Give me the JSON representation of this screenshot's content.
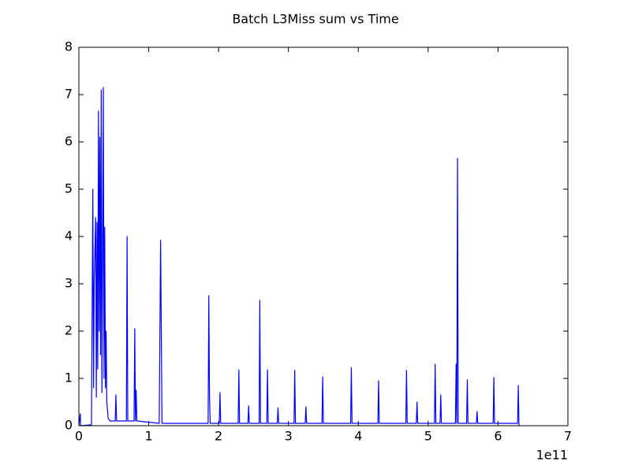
{
  "chart_data": {
    "type": "line",
    "title": "Batch L3Miss sum vs Time",
    "x_offset_label": "1e11",
    "xlim": [
      0,
      7
    ],
    "xticks": [
      0,
      1,
      2,
      3,
      4,
      5,
      6,
      7
    ],
    "ylim": [
      0,
      8
    ],
    "yticks": [
      0,
      1,
      2,
      3,
      4,
      5,
      6,
      7,
      8
    ],
    "grid": false,
    "series": [
      {
        "color": "#0000ff",
        "x": [
          0,
          0.02,
          0.025,
          0.18,
          0.2,
          0.21,
          0.22,
          0.24,
          0.25,
          0.26,
          0.27,
          0.28,
          0.29,
          0.3,
          0.31,
          0.32,
          0.33,
          0.34,
          0.35,
          0.36,
          0.37,
          0.38,
          0.39,
          0.4,
          0.42,
          0.45,
          0.52,
          0.53,
          0.54,
          0.68,
          0.69,
          0.7,
          0.79,
          0.8,
          0.81,
          0.82,
          0.83,
          1.15,
          1.17,
          1.18,
          1.19,
          1.5,
          1.85,
          1.86,
          1.87,
          1.88,
          2.01,
          2.02,
          2.03,
          2.28,
          2.29,
          2.3,
          2.42,
          2.43,
          2.44,
          2.58,
          2.59,
          2.6,
          2.69,
          2.7,
          2.71,
          2.84,
          2.85,
          2.86,
          3.08,
          3.09,
          3.1,
          3.24,
          3.25,
          3.26,
          3.48,
          3.49,
          3.5,
          3.89,
          3.9,
          3.91,
          4.28,
          4.29,
          4.3,
          4.68,
          4.69,
          4.7,
          4.83,
          4.84,
          4.85,
          5.09,
          5.1,
          5.11,
          5.17,
          5.18,
          5.19,
          5.39,
          5.4,
          5.41,
          5.42,
          5.43,
          5.55,
          5.56,
          5.57,
          5.69,
          5.7,
          5.71,
          5.93,
          5.94,
          5.95,
          6.28,
          6.29,
          6.3
        ],
        "values": [
          0,
          0.25,
          0,
          0.02,
          5.0,
          0.8,
          3.1,
          4.4,
          0.6,
          4.3,
          1.2,
          6.65,
          2.0,
          6.1,
          1.5,
          7.1,
          0.7,
          3.5,
          7.15,
          1.0,
          4.2,
          0.8,
          2.0,
          0.5,
          0.15,
          0.1,
          0.1,
          0.65,
          0.1,
          0.1,
          4.0,
          0.1,
          0.1,
          2.05,
          0.1,
          0.75,
          0.1,
          0.05,
          3.92,
          2.0,
          0.05,
          0.05,
          0.05,
          2.75,
          0.6,
          0.05,
          0.05,
          0.7,
          0.05,
          0.05,
          1.18,
          0.05,
          0.05,
          0.42,
          0.05,
          0.05,
          2.65,
          0.05,
          0.05,
          1.18,
          0.05,
          0.05,
          0.38,
          0.05,
          0.05,
          1.17,
          0.05,
          0.05,
          0.4,
          0.05,
          0.05,
          1.03,
          0.05,
          0.05,
          1.23,
          0.05,
          0.05,
          0.95,
          0.05,
          0.05,
          1.17,
          0.05,
          0.05,
          0.5,
          0.05,
          0.05,
          1.3,
          0.05,
          0.05,
          0.65,
          0.05,
          0.05,
          1.3,
          0.05,
          5.65,
          0.05,
          0.05,
          0.97,
          0.05,
          0.05,
          0.3,
          0.05,
          0.05,
          1.02,
          0.05,
          0.05,
          0.85,
          0
        ]
      }
    ]
  }
}
